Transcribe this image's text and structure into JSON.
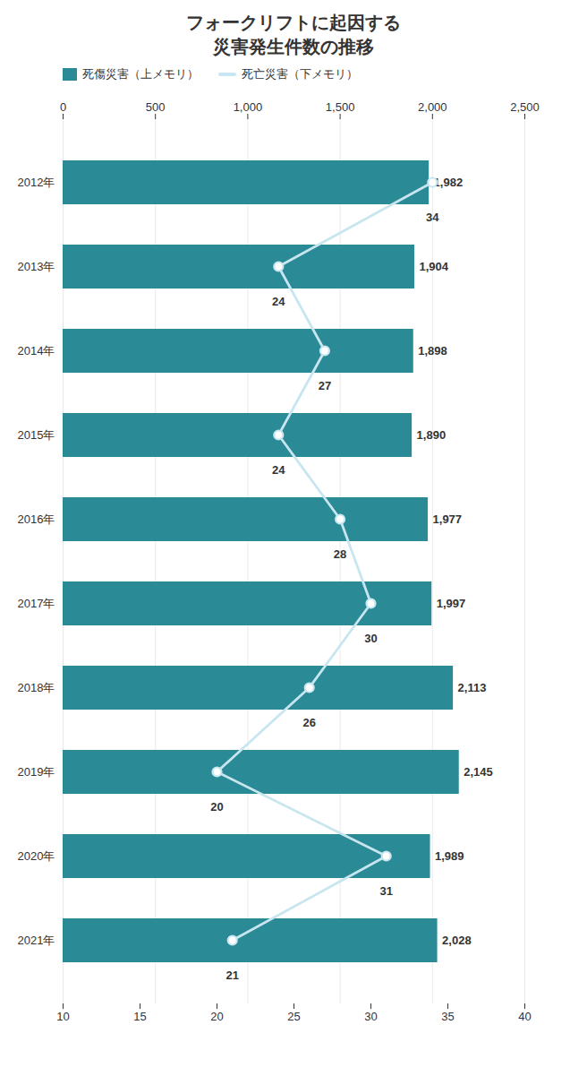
{
  "chart_data": {
    "type": "bar",
    "title": "フォークリフトに起因する\n災害発生件数の推移",
    "orientation": "horizontal",
    "categories": [
      "2012年",
      "2013年",
      "2014年",
      "2015年",
      "2016年",
      "2017年",
      "2018年",
      "2019年",
      "2020年",
      "2021年"
    ],
    "series": [
      {
        "name": "死傷災害（上メモリ）",
        "type": "bar",
        "color": "#2a8a96",
        "values": [
          1982,
          1904,
          1898,
          1890,
          1977,
          1997,
          2113,
          2145,
          1989,
          2028
        ],
        "value_labels": [
          "1,982",
          "1,904",
          "1,898",
          "1,890",
          "1,977",
          "1,997",
          "2,113",
          "2,145",
          "1,989",
          "2,028"
        ]
      },
      {
        "name": "死亡災害（下メモリ）",
        "type": "line",
        "axis": "y2",
        "color": "#c8e6f0",
        "marker": "circle",
        "values": [
          34,
          24,
          27,
          24,
          28,
          30,
          26,
          20,
          31,
          21
        ]
      }
    ],
    "ylim": [
      0,
      2500
    ],
    "yticks": [
      0,
      500,
      {
        "value": 1000,
        "label": "1,000"
      },
      {
        "value": 1500,
        "label": "1,500"
      },
      {
        "value": 2000,
        "label": "2,000"
      },
      {
        "value": 2500,
        "label": "2,500"
      }
    ],
    "y2lim": [
      10,
      40
    ],
    "y2ticks": [
      10,
      15,
      20,
      25,
      30,
      35,
      40
    ],
    "grid": true,
    "legend": "top",
    "data_labels": true
  }
}
